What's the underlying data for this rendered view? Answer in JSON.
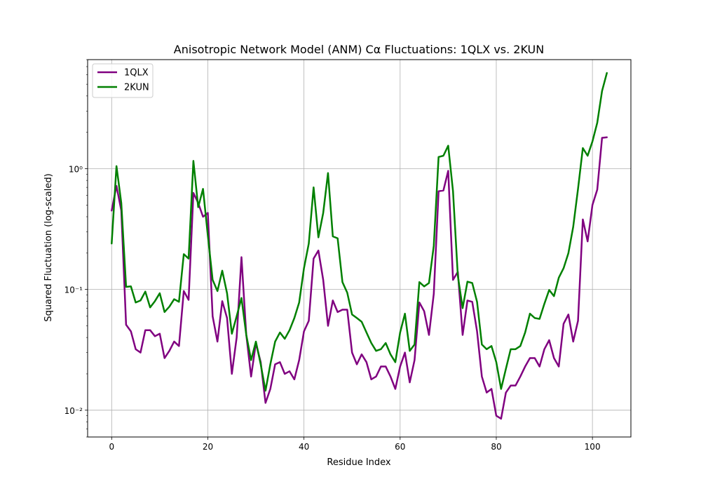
{
  "chart_data": {
    "type": "line",
    "title": "Anisotropic Network Model (ANM) Cα Fluctuations: 1QLX vs. 2KUN",
    "xlabel": "Residue Index",
    "ylabel": "Squared Fluctuation (log-scaled)",
    "xlim": [
      -5,
      108
    ],
    "ylim": [
      0.006,
      8
    ],
    "yscale": "log",
    "grid": true,
    "legend_position": "top-left",
    "x_ticks": [
      0,
      20,
      40,
      60,
      80,
      100
    ],
    "x_tick_labels": [
      "0",
      "20",
      "40",
      "60",
      "80",
      "100"
    ],
    "y_ticks": [
      0.01,
      0.1,
      1
    ],
    "y_tick_labels": [
      "10⁻²",
      "10⁻¹",
      "10⁰"
    ],
    "series": [
      {
        "name": "1QLX",
        "color": "#800080",
        "x": [
          0,
          1,
          2,
          3,
          4,
          5,
          6,
          7,
          8,
          9,
          10,
          11,
          12,
          13,
          14,
          15,
          16,
          17,
          18,
          19,
          20,
          21,
          22,
          23,
          24,
          25,
          26,
          27,
          28,
          29,
          30,
          31,
          32,
          33,
          34,
          35,
          36,
          37,
          38,
          39,
          40,
          41,
          42,
          43,
          44,
          45,
          46,
          47,
          48,
          49,
          50,
          51,
          52,
          53,
          54,
          55,
          56,
          57,
          58,
          59,
          60,
          61,
          62,
          63,
          64,
          65,
          66,
          67,
          68,
          69,
          70,
          71,
          72,
          73,
          74,
          75,
          76,
          77,
          78,
          79,
          80,
          81,
          82,
          83,
          84,
          85,
          86,
          87,
          88,
          89,
          90,
          91,
          92,
          93,
          94,
          95,
          96,
          97,
          98,
          99,
          100,
          101,
          102,
          103
        ],
        "values": [
          0.45,
          0.72,
          0.45,
          0.051,
          0.045,
          0.032,
          0.03,
          0.046,
          0.046,
          0.041,
          0.043,
          0.027,
          0.031,
          0.037,
          0.034,
          0.097,
          0.082,
          0.63,
          0.52,
          0.4,
          0.43,
          0.06,
          0.037,
          0.08,
          0.058,
          0.02,
          0.04,
          0.185,
          0.042,
          0.019,
          0.036,
          0.025,
          0.0115,
          0.015,
          0.024,
          0.025,
          0.02,
          0.021,
          0.018,
          0.026,
          0.045,
          0.055,
          0.18,
          0.21,
          0.12,
          0.05,
          0.081,
          0.065,
          0.068,
          0.068,
          0.03,
          0.024,
          0.029,
          0.025,
          0.018,
          0.019,
          0.023,
          0.023,
          0.019,
          0.015,
          0.023,
          0.03,
          0.017,
          0.026,
          0.078,
          0.066,
          0.042,
          0.092,
          0.65,
          0.66,
          0.96,
          0.12,
          0.14,
          0.042,
          0.081,
          0.079,
          0.045,
          0.019,
          0.014,
          0.015,
          0.009,
          0.0085,
          0.014,
          0.016,
          0.016,
          0.019,
          0.023,
          0.027,
          0.027,
          0.023,
          0.032,
          0.038,
          0.027,
          0.023,
          0.052,
          0.062,
          0.037,
          0.055,
          0.38,
          0.25,
          0.5,
          0.67,
          1.8,
          1.82
        ]
      },
      {
        "name": "2KUN",
        "color": "#008000",
        "x": [
          0,
          1,
          2,
          3,
          4,
          5,
          6,
          7,
          8,
          9,
          10,
          11,
          12,
          13,
          14,
          15,
          16,
          17,
          18,
          19,
          20,
          21,
          22,
          23,
          24,
          25,
          26,
          27,
          28,
          29,
          30,
          31,
          32,
          33,
          34,
          35,
          36,
          37,
          38,
          39,
          40,
          41,
          42,
          43,
          44,
          45,
          46,
          47,
          48,
          49,
          50,
          51,
          52,
          53,
          54,
          55,
          56,
          57,
          58,
          59,
          60,
          61,
          62,
          63,
          64,
          65,
          66,
          67,
          68,
          69,
          70,
          71,
          72,
          73,
          74,
          75,
          76,
          77,
          78,
          79,
          80,
          81,
          82,
          83,
          84,
          85,
          86,
          87,
          88,
          89,
          90,
          91,
          92,
          93,
          94,
          95,
          96,
          97,
          98,
          99,
          100,
          101,
          102,
          103
        ],
        "values": [
          0.24,
          1.05,
          0.52,
          0.105,
          0.106,
          0.078,
          0.081,
          0.096,
          0.071,
          0.08,
          0.093,
          0.065,
          0.072,
          0.083,
          0.079,
          0.196,
          0.18,
          1.16,
          0.48,
          0.68,
          0.28,
          0.12,
          0.097,
          0.143,
          0.093,
          0.043,
          0.06,
          0.085,
          0.042,
          0.026,
          0.037,
          0.024,
          0.0145,
          0.024,
          0.037,
          0.044,
          0.039,
          0.046,
          0.058,
          0.078,
          0.15,
          0.24,
          0.7,
          0.27,
          0.43,
          0.92,
          0.275,
          0.265,
          0.115,
          0.094,
          0.062,
          0.058,
          0.054,
          0.044,
          0.036,
          0.031,
          0.032,
          0.036,
          0.029,
          0.025,
          0.044,
          0.063,
          0.031,
          0.035,
          0.115,
          0.106,
          0.113,
          0.23,
          1.25,
          1.28,
          1.55,
          0.65,
          0.13,
          0.07,
          0.116,
          0.113,
          0.079,
          0.035,
          0.032,
          0.034,
          0.025,
          0.015,
          0.022,
          0.032,
          0.032,
          0.034,
          0.044,
          0.063,
          0.058,
          0.057,
          0.076,
          0.099,
          0.088,
          0.125,
          0.15,
          0.2,
          0.33,
          0.68,
          1.48,
          1.28,
          1.68,
          2.4,
          4.4,
          6.2
        ]
      }
    ]
  }
}
